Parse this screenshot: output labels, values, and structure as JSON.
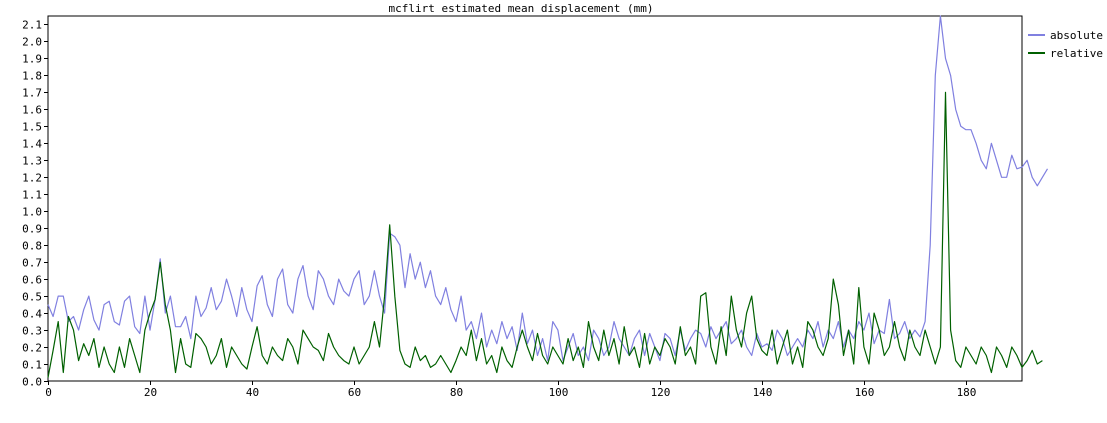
{
  "chart_data": {
    "type": "line",
    "title": "mcflirt estimated mean displacement (mm)",
    "xlabel": "",
    "ylabel": "",
    "xlim": [
      0,
      191
    ],
    "ylim": [
      0,
      2.15
    ],
    "xticks": [
      0,
      20,
      40,
      60,
      80,
      100,
      120,
      140,
      160,
      180
    ],
    "yticks": [
      0.0,
      0.1,
      0.2,
      0.3,
      0.4,
      0.5,
      0.6,
      0.7,
      0.8,
      0.9,
      1.0,
      1.1,
      1.2,
      1.3,
      1.4,
      1.5,
      1.6,
      1.7,
      1.8,
      1.9,
      2.0,
      2.1
    ],
    "grid": false,
    "legend_position": "outside-right-top",
    "series": [
      {
        "name": "absolute",
        "color": "#8080e0",
        "values": [
          0.45,
          0.38,
          0.5,
          0.5,
          0.35,
          0.38,
          0.3,
          0.42,
          0.5,
          0.36,
          0.3,
          0.45,
          0.47,
          0.35,
          0.33,
          0.47,
          0.5,
          0.32,
          0.28,
          0.5,
          0.3,
          0.48,
          0.72,
          0.4,
          0.5,
          0.32,
          0.32,
          0.38,
          0.25,
          0.5,
          0.38,
          0.43,
          0.55,
          0.42,
          0.47,
          0.6,
          0.5,
          0.38,
          0.55,
          0.42,
          0.35,
          0.56,
          0.62,
          0.45,
          0.38,
          0.6,
          0.66,
          0.45,
          0.4,
          0.6,
          0.68,
          0.5,
          0.42,
          0.65,
          0.6,
          0.5,
          0.45,
          0.6,
          0.53,
          0.5,
          0.6,
          0.65,
          0.45,
          0.5,
          0.65,
          0.5,
          0.4,
          0.87,
          0.85,
          0.8,
          0.55,
          0.75,
          0.6,
          0.7,
          0.55,
          0.65,
          0.5,
          0.45,
          0.55,
          0.42,
          0.35,
          0.5,
          0.3,
          0.35,
          0.25,
          0.4,
          0.2,
          0.3,
          0.22,
          0.35,
          0.25,
          0.32,
          0.18,
          0.4,
          0.22,
          0.3,
          0.15,
          0.25,
          0.12,
          0.35,
          0.3,
          0.12,
          0.2,
          0.28,
          0.15,
          0.2,
          0.12,
          0.3,
          0.25,
          0.15,
          0.2,
          0.35,
          0.25,
          0.2,
          0.15,
          0.25,
          0.3,
          0.15,
          0.28,
          0.2,
          0.12,
          0.28,
          0.25,
          0.15,
          0.3,
          0.18,
          0.25,
          0.3,
          0.28,
          0.2,
          0.32,
          0.25,
          0.3,
          0.35,
          0.22,
          0.25,
          0.3,
          0.2,
          0.15,
          0.28,
          0.2,
          0.22,
          0.18,
          0.3,
          0.25,
          0.15,
          0.2,
          0.25,
          0.2,
          0.3,
          0.25,
          0.35,
          0.2,
          0.3,
          0.25,
          0.35,
          0.2,
          0.3,
          0.25,
          0.35,
          0.3,
          0.4,
          0.22,
          0.3,
          0.28,
          0.48,
          0.25,
          0.28,
          0.35,
          0.25,
          0.3,
          0.26,
          0.35,
          0.8,
          1.8,
          2.15,
          1.9,
          1.8,
          1.6,
          1.5,
          1.48,
          1.48,
          1.4,
          1.3,
          1.25,
          1.4,
          1.3,
          1.2,
          1.2,
          1.33,
          1.25,
          1.26,
          1.3,
          1.2,
          1.15,
          1.2,
          1.25
        ]
      },
      {
        "name": "relative",
        "color": "#006000",
        "values": [
          0.02,
          0.18,
          0.35,
          0.05,
          0.38,
          0.3,
          0.12,
          0.22,
          0.15,
          0.25,
          0.08,
          0.2,
          0.1,
          0.05,
          0.2,
          0.08,
          0.25,
          0.15,
          0.05,
          0.3,
          0.4,
          0.48,
          0.7,
          0.45,
          0.3,
          0.05,
          0.25,
          0.1,
          0.08,
          0.28,
          0.25,
          0.2,
          0.1,
          0.15,
          0.25,
          0.08,
          0.2,
          0.15,
          0.1,
          0.07,
          0.2,
          0.32,
          0.15,
          0.1,
          0.2,
          0.15,
          0.12,
          0.25,
          0.2,
          0.1,
          0.3,
          0.25,
          0.2,
          0.18,
          0.12,
          0.28,
          0.2,
          0.15,
          0.12,
          0.1,
          0.2,
          0.1,
          0.15,
          0.2,
          0.35,
          0.2,
          0.5,
          0.92,
          0.5,
          0.18,
          0.1,
          0.08,
          0.2,
          0.12,
          0.15,
          0.08,
          0.1,
          0.15,
          0.1,
          0.05,
          0.12,
          0.2,
          0.15,
          0.3,
          0.12,
          0.25,
          0.1,
          0.15,
          0.05,
          0.2,
          0.12,
          0.08,
          0.2,
          0.3,
          0.2,
          0.12,
          0.28,
          0.15,
          0.1,
          0.2,
          0.15,
          0.1,
          0.25,
          0.12,
          0.2,
          0.08,
          0.35,
          0.2,
          0.12,
          0.3,
          0.15,
          0.25,
          0.1,
          0.32,
          0.15,
          0.2,
          0.08,
          0.28,
          0.1,
          0.2,
          0.15,
          0.25,
          0.2,
          0.1,
          0.32,
          0.15,
          0.2,
          0.1,
          0.5,
          0.52,
          0.2,
          0.1,
          0.32,
          0.15,
          0.5,
          0.3,
          0.2,
          0.4,
          0.5,
          0.25,
          0.18,
          0.15,
          0.3,
          0.1,
          0.2,
          0.3,
          0.1,
          0.2,
          0.08,
          0.35,
          0.3,
          0.2,
          0.15,
          0.25,
          0.6,
          0.45,
          0.15,
          0.3,
          0.1,
          0.55,
          0.2,
          0.1,
          0.4,
          0.3,
          0.15,
          0.2,
          0.35,
          0.2,
          0.12,
          0.3,
          0.2,
          0.15,
          0.3,
          0.2,
          0.1,
          0.2,
          1.7,
          0.3,
          0.12,
          0.08,
          0.2,
          0.15,
          0.1,
          0.2,
          0.15,
          0.05,
          0.2,
          0.15,
          0.08,
          0.2,
          0.15,
          0.08,
          0.12,
          0.18,
          0.1,
          0.12
        ]
      }
    ]
  }
}
